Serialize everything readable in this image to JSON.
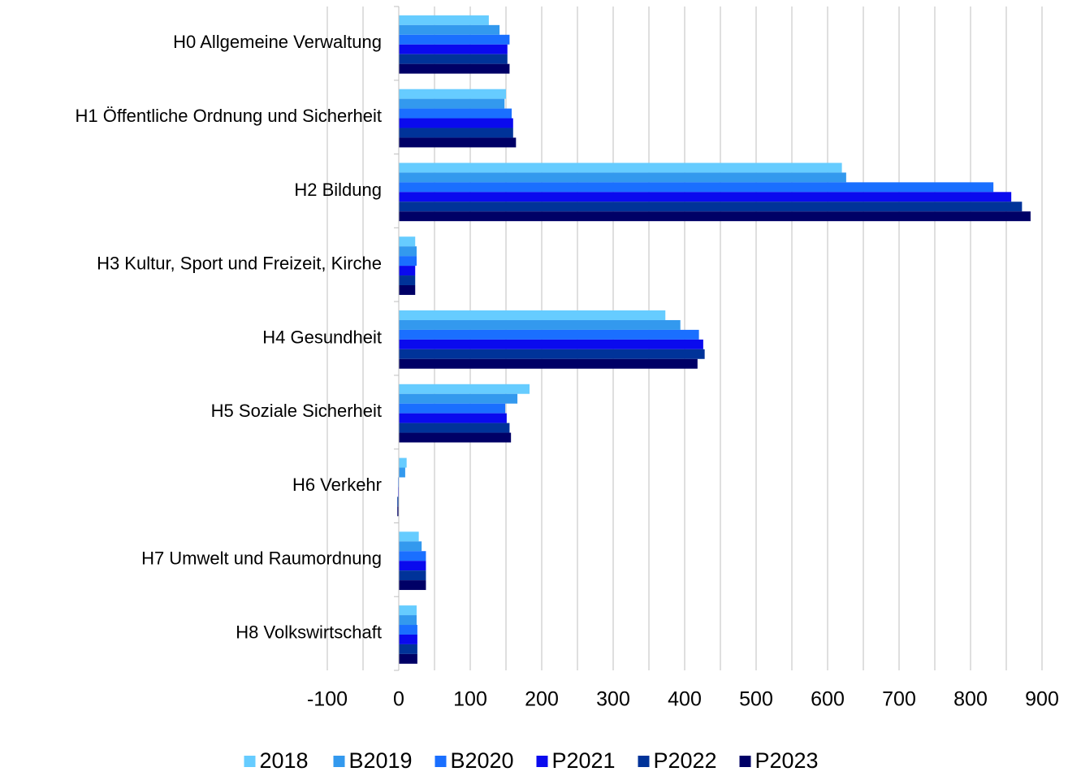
{
  "chart_data": {
    "type": "bar",
    "orientation": "horizontal",
    "categories": [
      "H0 Allgemeine Verwaltung",
      "H1 Öffentliche Ordnung und Sicherheit",
      "H2 Bildung",
      "H3 Kultur, Sport und Freizeit, Kirche",
      "H4 Gesundheit",
      "H5 Soziale Sicherheit",
      "H6 Verkehr",
      "H7 Umwelt und Raumordnung",
      "H8 Volkswirtschaft"
    ],
    "series": [
      {
        "name": "2018",
        "color": "#66ccff",
        "values": [
          126,
          150,
          620,
          23,
          373,
          183,
          11,
          28,
          25
        ]
      },
      {
        "name": "B2019",
        "color": "#3399ee",
        "values": [
          141,
          148,
          626,
          25,
          394,
          166,
          9,
          32,
          25
        ]
      },
      {
        "name": "B2020",
        "color": "#1a6fff",
        "values": [
          155,
          158,
          832,
          25,
          420,
          149,
          -1,
          38,
          26
        ]
      },
      {
        "name": "P2021",
        "color": "#0a0aee",
        "values": [
          152,
          160,
          857,
          23,
          426,
          151,
          -1,
          38,
          26
        ]
      },
      {
        "name": "P2022",
        "color": "#003399",
        "values": [
          152,
          160,
          872,
          23,
          428,
          155,
          -2,
          38,
          26
        ]
      },
      {
        "name": "P2023",
        "color": "#000066",
        "values": [
          155,
          164,
          884,
          23,
          418,
          157,
          -2,
          38,
          26
        ]
      }
    ],
    "xlim": [
      -100,
      900
    ],
    "xticks": [
      -100,
      0,
      100,
      200,
      300,
      400,
      500,
      600,
      700,
      800,
      900
    ],
    "minor_xticks": [
      -50,
      50,
      150,
      250,
      350,
      450,
      550,
      650,
      750,
      850
    ],
    "grid": true,
    "legend": "bottom"
  }
}
